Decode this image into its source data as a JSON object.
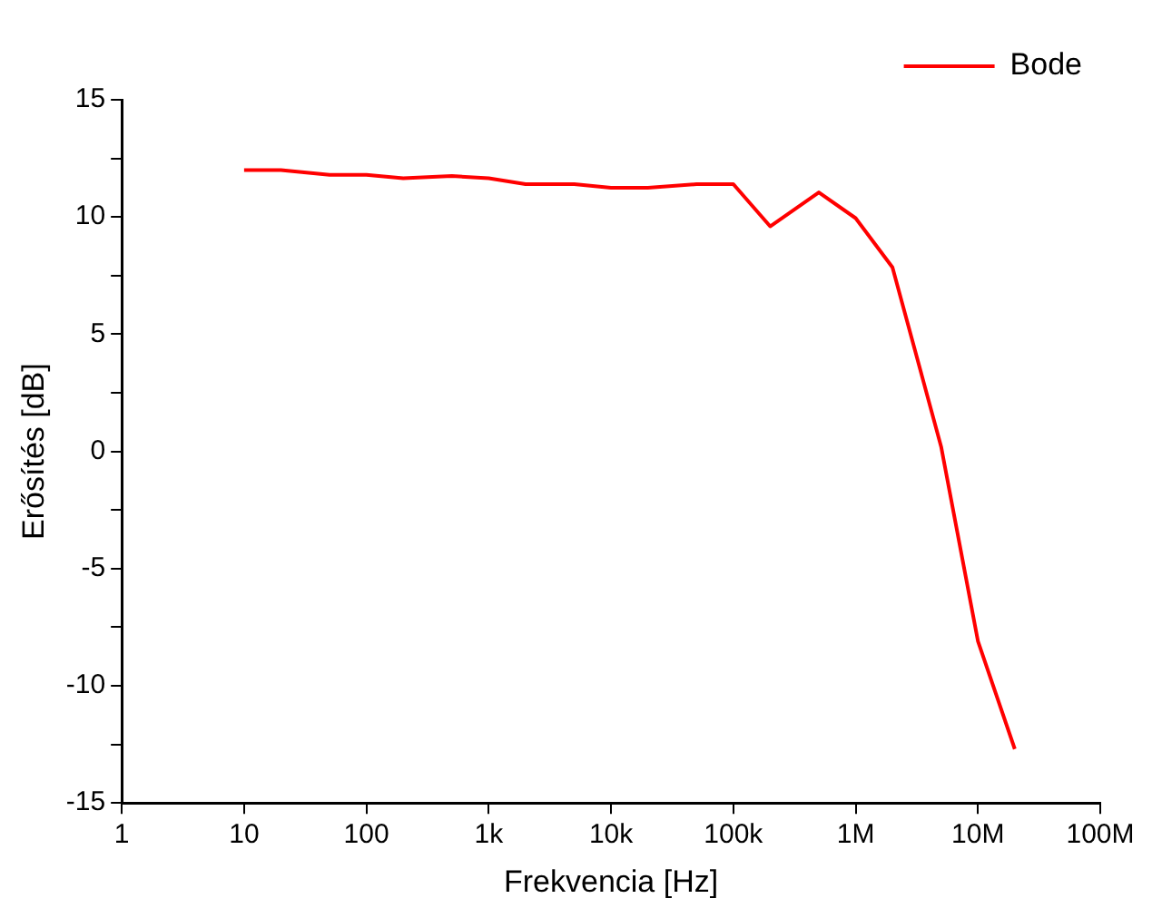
{
  "chart_data": {
    "type": "line",
    "xlabel": "Frekvencia [Hz]",
    "ylabel": "Erősítés [dB]",
    "log": "x",
    "x": [
      10,
      20,
      50,
      100,
      200,
      500,
      1000,
      2000,
      5000,
      10000,
      20000,
      50000,
      100000,
      200000,
      500000,
      1000000,
      2000000,
      5000000,
      10000000,
      20000000
    ],
    "series": [
      {
        "name": "Bode",
        "color": "#ff0000",
        "values": [
          12.0,
          12.0,
          11.8,
          11.8,
          11.65,
          11.75,
          11.65,
          11.4,
          11.4,
          11.25,
          11.25,
          11.4,
          11.4,
          9.6,
          11.05,
          9.95,
          7.85,
          0.2,
          -8.1,
          -12.7
        ]
      }
    ],
    "xlim": [
      1,
      100000000
    ],
    "xticks": [
      {
        "value": 1,
        "label": "1"
      },
      {
        "value": 10,
        "label": "10"
      },
      {
        "value": 100,
        "label": "100"
      },
      {
        "value": 1000,
        "label": "1k"
      },
      {
        "value": 10000,
        "label": "10k"
      },
      {
        "value": 100000,
        "label": "100k"
      },
      {
        "value": 1000000,
        "label": "1M"
      },
      {
        "value": 10000000,
        "label": "10M"
      },
      {
        "value": 100000000,
        "label": "100M"
      }
    ],
    "ylim": [
      -15,
      15
    ],
    "yticks": [
      -15,
      {
        "value": -12.5,
        "label": null
      },
      -10,
      {
        "value": -7.5,
        "label": null
      },
      -5,
      {
        "value": -2.5,
        "label": null
      },
      0,
      {
        "value": 2.5,
        "label": null
      },
      5,
      {
        "value": 7.5,
        "label": null
      },
      10,
      {
        "value": 12.5,
        "label": null
      },
      15
    ],
    "grid": false,
    "legend": "top right",
    "marker": "none",
    "line_style": "solid"
  }
}
